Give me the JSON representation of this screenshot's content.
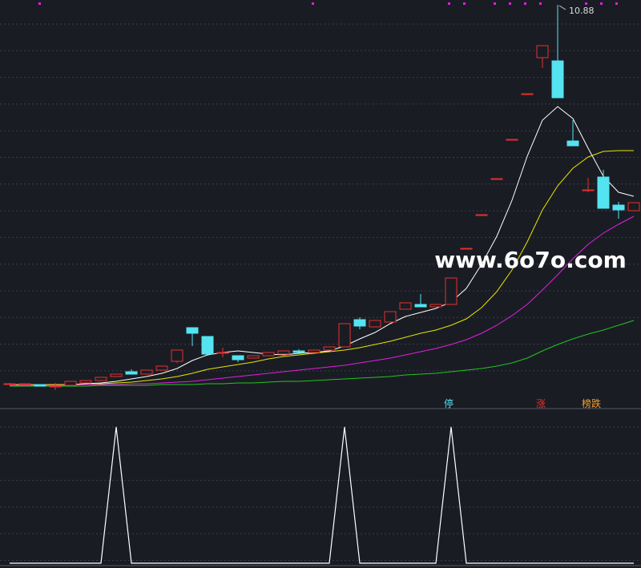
{
  "chart_data": [
    {
      "type": "candlestick",
      "ylim": [
        1.2,
        11
      ],
      "up_color": "#e5312c",
      "down_color": "#54e3f0",
      "open": [
        1.42,
        1.4,
        1.4,
        1.36,
        1.38,
        1.44,
        1.5,
        1.6,
        1.72,
        1.66,
        1.76,
        1.98,
        2.82,
        2.6,
        2.2,
        2.12,
        2.06,
        2.12,
        2.16,
        2.24,
        2.2,
        2.26,
        2.34,
        3.02,
        2.84,
        2.96,
        3.28,
        3.4,
        3.34,
        3.4,
        4.8,
        5.64,
        6.54,
        7.52,
        8.66,
        9.56,
        9.48,
        7.48,
        6.26,
        6.58,
        5.88,
        5.74
      ],
      "high": [
        1.44,
        1.42,
        1.4,
        1.44,
        1.48,
        1.5,
        1.58,
        1.66,
        1.78,
        1.76,
        1.86,
        2.26,
        2.82,
        2.6,
        2.32,
        2.12,
        2.12,
        2.2,
        2.24,
        2.28,
        2.26,
        2.34,
        2.92,
        3.08,
        3.0,
        3.22,
        3.44,
        3.66,
        3.4,
        4.06,
        4.8,
        5.64,
        6.54,
        7.52,
        8.66,
        9.86,
        10.88,
        8.0,
        6.56,
        6.76,
        5.96,
        5.94
      ],
      "low": [
        1.4,
        1.4,
        1.36,
        1.26,
        1.38,
        1.44,
        1.5,
        1.6,
        1.66,
        1.66,
        1.76,
        1.94,
        2.36,
        2.16,
        2.08,
        1.96,
        2.06,
        2.12,
        2.16,
        2.2,
        2.2,
        2.26,
        2.34,
        2.78,
        2.84,
        2.96,
        3.28,
        3.34,
        3.34,
        3.4,
        4.8,
        5.64,
        6.54,
        7.52,
        8.66,
        9.3,
        8.56,
        7.36,
        6.2,
        5.8,
        5.54,
        5.74
      ],
      "close": [
        1.42,
        1.42,
        1.36,
        1.36,
        1.48,
        1.5,
        1.58,
        1.66,
        1.66,
        1.76,
        1.86,
        2.26,
        2.68,
        2.16,
        2.2,
        2.02,
        2.12,
        2.2,
        2.24,
        2.2,
        2.26,
        2.34,
        2.92,
        2.86,
        3.0,
        3.22,
        3.44,
        3.34,
        3.4,
        4.06,
        4.8,
        5.64,
        6.54,
        7.52,
        8.66,
        9.86,
        8.56,
        7.36,
        6.26,
        5.8,
        5.76,
        5.94
      ],
      "annotation": "10.88",
      "watermark": "www.6o7o.com",
      "signals": [
        {
          "label": "停",
          "color": "#54e3f0"
        },
        {
          "label": "涨",
          "color": "#e5312c"
        },
        {
          "label": "榜跌",
          "color": "#f0a030"
        }
      ],
      "series": [
        {
          "color": "#ffffff",
          "values": [
            1.4,
            1.4,
            1.4,
            1.38,
            1.4,
            1.42,
            1.44,
            1.48,
            1.54,
            1.6,
            1.68,
            1.8,
            2.0,
            2.14,
            2.2,
            2.24,
            2.2,
            2.16,
            2.14,
            2.18,
            2.2,
            2.24,
            2.36,
            2.54,
            2.7,
            2.92,
            3.1,
            3.2,
            3.3,
            3.46,
            3.8,
            4.4,
            5.1,
            6.0,
            7.1,
            8.0,
            8.34,
            8.04,
            7.3,
            6.6,
            6.2,
            6.1
          ]
        },
        {
          "color": "#e6e600",
          "values": [
            1.4,
            1.4,
            1.4,
            1.4,
            1.4,
            1.4,
            1.42,
            1.44,
            1.46,
            1.5,
            1.54,
            1.6,
            1.68,
            1.78,
            1.84,
            1.9,
            1.96,
            2.04,
            2.1,
            2.14,
            2.18,
            2.22,
            2.26,
            2.32,
            2.4,
            2.48,
            2.58,
            2.68,
            2.76,
            2.88,
            3.04,
            3.32,
            3.72,
            4.26,
            4.96,
            5.76,
            6.36,
            6.8,
            7.08,
            7.22,
            7.24,
            7.24
          ]
        },
        {
          "color": "#e020e0",
          "values": [
            1.38,
            1.38,
            1.38,
            1.38,
            1.38,
            1.4,
            1.4,
            1.4,
            1.42,
            1.42,
            1.44,
            1.46,
            1.48,
            1.52,
            1.56,
            1.6,
            1.64,
            1.68,
            1.72,
            1.76,
            1.8,
            1.84,
            1.88,
            1.94,
            2.0,
            2.06,
            2.14,
            2.22,
            2.3,
            2.4,
            2.52,
            2.68,
            2.88,
            3.12,
            3.4,
            3.76,
            4.14,
            4.54,
            4.9,
            5.18,
            5.4,
            5.6
          ]
        },
        {
          "color": "#22c422",
          "values": [
            1.36,
            1.36,
            1.36,
            1.36,
            1.36,
            1.36,
            1.38,
            1.38,
            1.38,
            1.38,
            1.4,
            1.4,
            1.4,
            1.42,
            1.42,
            1.44,
            1.44,
            1.46,
            1.48,
            1.48,
            1.5,
            1.52,
            1.54,
            1.56,
            1.58,
            1.6,
            1.64,
            1.66,
            1.68,
            1.72,
            1.76,
            1.8,
            1.86,
            1.94,
            2.06,
            2.24,
            2.4,
            2.54,
            2.66,
            2.76,
            2.88,
            3.0
          ]
        }
      ]
    },
    {
      "type": "line",
      "ylim": [
        0,
        1
      ],
      "color": "#ffffff",
      "values": [
        0,
        0,
        0,
        0,
        0,
        0,
        0,
        1,
        0,
        0,
        0,
        0,
        0,
        0,
        0,
        0,
        0,
        0,
        0,
        0,
        0,
        0,
        1,
        0,
        0,
        0,
        0,
        0,
        0,
        1,
        0,
        0,
        0,
        0,
        0,
        0,
        0,
        0,
        0,
        0,
        0,
        0
      ]
    }
  ]
}
